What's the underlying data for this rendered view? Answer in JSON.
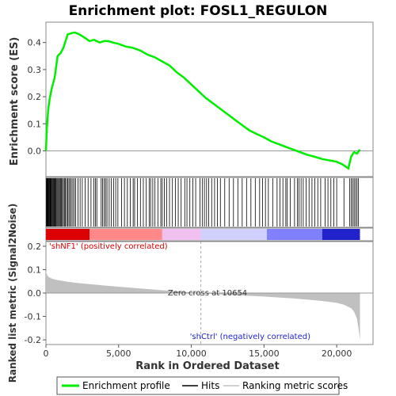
{
  "chart_data": [
    {
      "type": "line",
      "title": "Enrichment plot: FOSL1_REGULON",
      "ylabel": "Enrichment score (ES)",
      "xlim": [
        0,
        22500
      ],
      "ylim": [
        -0.095,
        0.475
      ],
      "yticks": [
        0.0,
        0.1,
        0.2,
        0.3,
        0.4
      ],
      "ytick_labels": [
        "0.0",
        "0.1",
        "0.2",
        "0.3",
        "0.4"
      ],
      "series": [
        {
          "name": "Enrichment profile",
          "color": "#00ee00",
          "x": [
            0,
            60,
            150,
            250,
            400,
            600,
            800,
            1000,
            1200,
            1500,
            1800,
            2000,
            2300,
            2600,
            3000,
            3300,
            3700,
            4000,
            4300,
            4600,
            5000,
            5500,
            6000,
            6500,
            7000,
            7500,
            8000,
            8500,
            9000,
            9500,
            10000,
            10500,
            11000,
            11500,
            12000,
            12500,
            13000,
            13500,
            14000,
            14500,
            15000,
            15500,
            16000,
            16500,
            17000,
            17500,
            18000,
            18500,
            19000,
            19500,
            20000,
            20400,
            20800,
            21000,
            21200,
            21400,
            21600
          ],
          "y": [
            0.0,
            0.08,
            0.15,
            0.19,
            0.23,
            0.27,
            0.35,
            0.36,
            0.38,
            0.43,
            0.435,
            0.437,
            0.43,
            0.42,
            0.405,
            0.41,
            0.4,
            0.405,
            0.405,
            0.4,
            0.395,
            0.385,
            0.38,
            0.37,
            0.355,
            0.345,
            0.33,
            0.315,
            0.29,
            0.27,
            0.245,
            0.22,
            0.195,
            0.175,
            0.155,
            0.135,
            0.115,
            0.095,
            0.075,
            0.062,
            0.05,
            0.035,
            0.025,
            0.015,
            0.005,
            -0.005,
            -0.015,
            -0.022,
            -0.03,
            -0.035,
            -0.04,
            -0.05,
            -0.065,
            -0.02,
            -0.005,
            -0.01,
            0.005
          ]
        }
      ],
      "zero_line": 0.0,
      "grid": false
    },
    {
      "type": "scatter",
      "name": "hits",
      "xlim": [
        0,
        22500
      ],
      "hits_x": [
        25,
        60,
        90,
        120,
        160,
        200,
        240,
        280,
        320,
        360,
        400,
        450,
        500,
        550,
        600,
        650,
        700,
        760,
        820,
        880,
        940,
        1000,
        1060,
        1130,
        1200,
        1270,
        1340,
        1420,
        1500,
        1580,
        1660,
        1750,
        1850,
        1950,
        2050,
        2200,
        2350,
        2500,
        2700,
        2900,
        3100,
        3300,
        3400,
        3500,
        3800,
        3900,
        4000,
        4100,
        4200,
        4350,
        4500,
        4650,
        4800,
        4950,
        5200,
        5400,
        5600,
        5800,
        6000,
        6100,
        6300,
        6500,
        6700,
        6900,
        7100,
        7200,
        7350,
        7500,
        7700,
        7900,
        8000,
        8150,
        8300,
        8500,
        8700,
        8900,
        9100,
        9300,
        9550,
        9700,
        9900,
        10100,
        10300,
        10600,
        10750,
        10900,
        11050,
        11200,
        11400,
        11600,
        11800,
        12000,
        12300,
        12600,
        12900,
        13200,
        13500,
        13800,
        14100,
        14400,
        14700,
        14900,
        15100,
        15300,
        15600,
        15900,
        16100,
        16300,
        16500,
        16600,
        16800,
        17100,
        17300,
        17400,
        17550,
        17700,
        17900,
        18100,
        18300,
        18500,
        18700,
        18900,
        19200,
        19400,
        19600,
        19800,
        20000,
        20500,
        20900,
        21000,
        21100,
        21200,
        21300,
        21400,
        21500
      ]
    },
    {
      "type": "heatmap",
      "name": "rank color bar",
      "colors": [
        "#dd0000",
        "#ff8888",
        "#f0c0f0",
        "#d0d0ff",
        "#8080ff",
        "#2222cc"
      ],
      "boundaries": [
        0,
        3000,
        8000,
        10654,
        15200,
        19000,
        21600
      ]
    },
    {
      "type": "area",
      "xlabel": "Rank in Ordered Dataset",
      "ylabel": "Ranked list metric (Signal2Noise)",
      "xlim": [
        0,
        22500
      ],
      "ylim": [
        -0.22,
        0.22
      ],
      "xticks": [
        0,
        5000,
        10000,
        15000,
        20000
      ],
      "xtick_labels": [
        "0",
        "5,000",
        "10,000",
        "15,000",
        "20,000"
      ],
      "yticks": [
        -0.2,
        -0.1,
        0.0,
        0.1,
        0.2
      ],
      "ytick_labels": [
        "-0.2",
        "-0.1",
        "0.0",
        "0.1",
        "0.2"
      ],
      "x": [
        0,
        30,
        100,
        200,
        400,
        700,
        1000,
        1500,
        2000,
        3000,
        4000,
        5000,
        6000,
        7000,
        8000,
        9000,
        10000,
        10654,
        11000,
        12000,
        13000,
        14000,
        15000,
        16000,
        17000,
        18000,
        19000,
        20000,
        20500,
        21000,
        21200,
        21400,
        21500,
        21600
      ],
      "y": [
        0.1,
        0.085,
        0.075,
        0.068,
        0.062,
        0.057,
        0.053,
        0.048,
        0.044,
        0.038,
        0.032,
        0.027,
        0.022,
        0.017,
        0.012,
        0.007,
        0.003,
        0.0,
        -0.002,
        -0.006,
        -0.009,
        -0.012,
        -0.015,
        -0.019,
        -0.023,
        -0.028,
        -0.034,
        -0.042,
        -0.05,
        -0.065,
        -0.08,
        -0.11,
        -0.15,
        -0.2
      ],
      "zero_cross_label": "Zero cross at 10654",
      "zero_cross": 10654,
      "pos_label": "'shNF1' (positively correlated)",
      "neg_label": "'shCtrl' (negatively correlated)"
    }
  ],
  "legend": {
    "items": [
      {
        "label": "Enrichment profile",
        "color": "#00ee00"
      },
      {
        "label": "Hits",
        "color": "#000000"
      },
      {
        "label": "Ranking metric scores",
        "color": "#c0c0c0"
      }
    ]
  }
}
